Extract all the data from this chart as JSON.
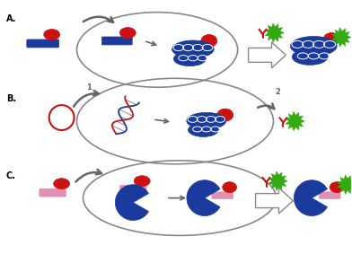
{
  "bg_color": "#ffffff",
  "label_A": "A.",
  "label_B": "B.",
  "label_C": "C.",
  "label_1": "1",
  "label_2": "2",
  "colors": {
    "blue": "#1a3a9e",
    "red": "#cc1111",
    "green": "#33aa11",
    "gray": "#888888",
    "dark_gray": "#666666",
    "pink": "#e090b0",
    "white": "#ffffff"
  },
  "figsize": [
    3.92,
    2.83
  ],
  "dpi": 100
}
